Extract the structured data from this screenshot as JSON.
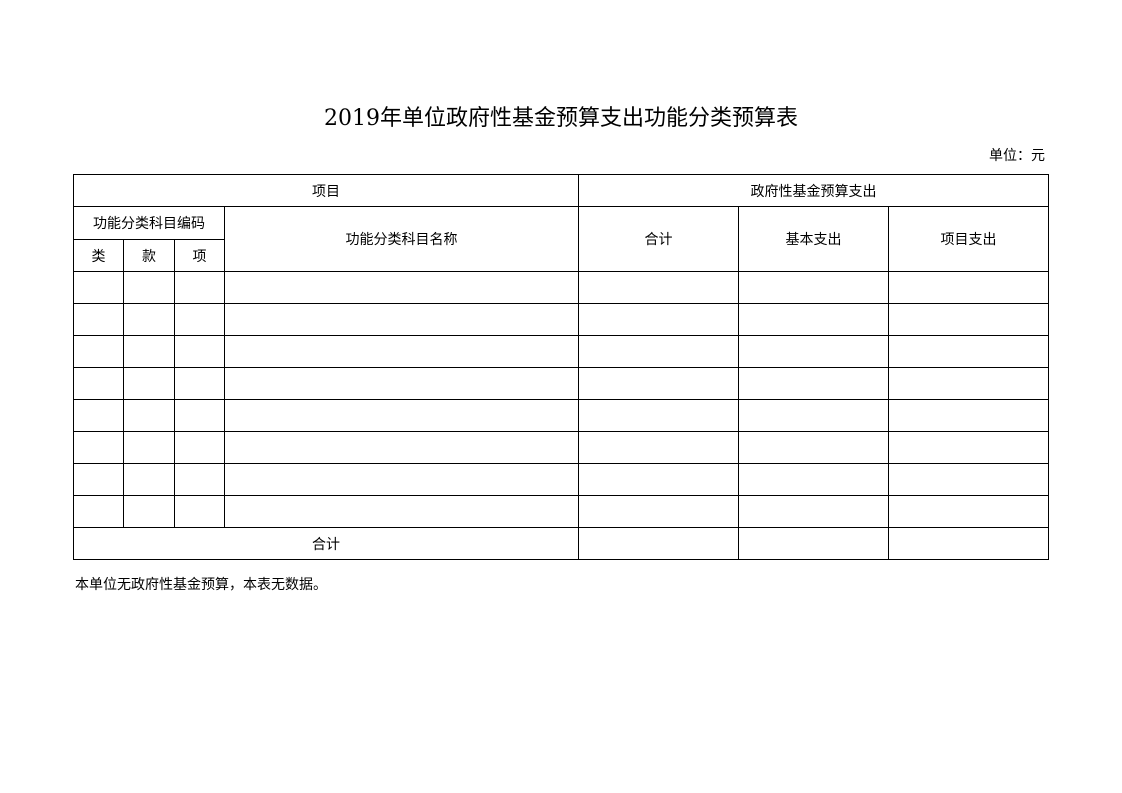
{
  "title": "2019年单位政府性基金预算支出功能分类预算表",
  "unit": "单位：元",
  "table": {
    "header_item": "项目",
    "header_expense": "政府性基金预算支出",
    "code_group": "功能分类科目编码",
    "code_cols": [
      "类",
      "款",
      "项"
    ],
    "name_col": "功能分类科目名称",
    "amount_cols": [
      "合计",
      "基本支出",
      "项目支出"
    ],
    "rows": [
      [
        "",
        "",
        "",
        "",
        "",
        "",
        ""
      ],
      [
        "",
        "",
        "",
        "",
        "",
        "",
        ""
      ],
      [
        "",
        "",
        "",
        "",
        "",
        "",
        ""
      ],
      [
        "",
        "",
        "",
        "",
        "",
        "",
        ""
      ],
      [
        "",
        "",
        "",
        "",
        "",
        "",
        ""
      ],
      [
        "",
        "",
        "",
        "",
        "",
        "",
        ""
      ],
      [
        "",
        "",
        "",
        "",
        "",
        "",
        ""
      ],
      [
        "",
        "",
        "",
        "",
        "",
        "",
        ""
      ]
    ],
    "total_label": "合计",
    "total_values": [
      "",
      "",
      ""
    ]
  },
  "note": "本单位无政府性基金预算，本表无数据。"
}
